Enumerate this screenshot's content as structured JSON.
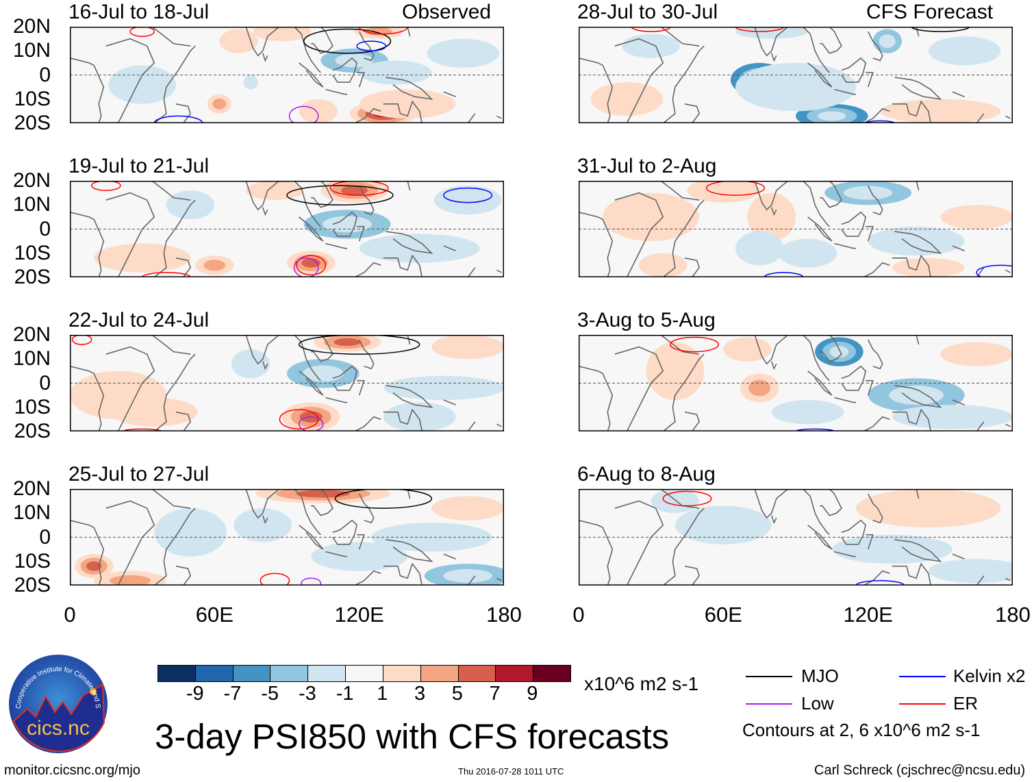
{
  "header": {
    "observed_label": "Observed",
    "forecast_label": "CFS Forecast"
  },
  "y_ticks": [
    "20N",
    "10N",
    "0",
    "10S",
    "20S"
  ],
  "x_ticks": [
    "0",
    "60E",
    "120E",
    "180"
  ],
  "panels": [
    {
      "title": "16-Jul to 18-Jul",
      "blobs": [
        [
          88,
          18,
          12,
          4,
          3
        ],
        [
          128,
          18,
          10,
          3,
          5
        ],
        [
          118,
          6,
          14,
          5,
          -4
        ],
        [
          135,
          1,
          15,
          5,
          -3
        ],
        [
          130,
          -16,
          14,
          5,
          8
        ],
        [
          62,
          -12,
          5,
          4,
          5
        ],
        [
          103,
          -15,
          8,
          5,
          3
        ],
        [
          163,
          9,
          15,
          6,
          -2
        ],
        [
          30,
          -4,
          14,
          8,
          -2
        ],
        [
          75,
          -3,
          3,
          3,
          -3
        ],
        [
          140,
          -12,
          20,
          6,
          2
        ],
        [
          70,
          14,
          8,
          5,
          2
        ]
      ],
      "contours": [
        [
          115,
          14,
          18,
          5,
          "mjo"
        ],
        [
          30,
          18,
          5,
          2,
          "er"
        ],
        [
          125,
          12,
          6,
          2,
          "kelvin"
        ],
        [
          45,
          -20,
          10,
          3,
          "kelvin"
        ],
        [
          97,
          -17,
          6,
          4,
          "low"
        ],
        [
          130,
          20,
          10,
          3,
          "er"
        ]
      ]
    },
    {
      "title": "28-Jul to 30-Jul",
      "blobs": [
        [
          75,
          -2,
          12,
          7,
          -6
        ],
        [
          105,
          -17,
          15,
          5,
          -6
        ],
        [
          90,
          -5,
          25,
          10,
          -3
        ],
        [
          128,
          14,
          6,
          5,
          -4
        ],
        [
          20,
          -10,
          15,
          7,
          2
        ],
        [
          150,
          -15,
          25,
          5,
          1.5
        ],
        [
          160,
          10,
          15,
          6,
          -2
        ],
        [
          80,
          18,
          15,
          3,
          -2
        ],
        [
          30,
          12,
          12,
          5,
          -2
        ]
      ],
      "contours": [
        [
          150,
          20,
          12,
          2,
          "mjo"
        ],
        [
          75,
          20,
          10,
          2,
          "er"
        ],
        [
          30,
          20,
          8,
          2,
          "er"
        ],
        [
          125,
          -20,
          6,
          1,
          "kelvin"
        ]
      ]
    },
    {
      "title": "19-Jul to 21-Jul",
      "blobs": [
        [
          118,
          16,
          14,
          5,
          7
        ],
        [
          85,
          16,
          12,
          4,
          3
        ],
        [
          115,
          2,
          18,
          6,
          -4
        ],
        [
          100,
          -14,
          10,
          5,
          7
        ],
        [
          60,
          -15,
          8,
          4,
          4
        ],
        [
          145,
          -8,
          25,
          6,
          -2
        ],
        [
          30,
          -12,
          20,
          6,
          2
        ],
        [
          165,
          12,
          14,
          6,
          -2
        ],
        [
          50,
          10,
          10,
          6,
          -1.5
        ]
      ],
      "contours": [
        [
          112,
          14,
          22,
          4,
          "mjo"
        ],
        [
          15,
          18,
          6,
          2,
          "er"
        ],
        [
          120,
          17,
          12,
          3,
          "er"
        ],
        [
          165,
          14,
          10,
          3,
          "kelvin"
        ],
        [
          100,
          -15,
          6,
          4,
          "er"
        ],
        [
          98,
          -16,
          5,
          4,
          "low"
        ],
        [
          40,
          -20,
          10,
          2,
          "er"
        ]
      ]
    },
    {
      "title": "31-Jul to 2-Aug",
      "blobs": [
        [
          60,
          16,
          15,
          5,
          3
        ],
        [
          80,
          5,
          10,
          10,
          2
        ],
        [
          120,
          15,
          18,
          5,
          -4
        ],
        [
          75,
          -8,
          10,
          7,
          -3
        ],
        [
          95,
          -10,
          12,
          6,
          -2
        ],
        [
          140,
          -5,
          20,
          6,
          -2
        ],
        [
          30,
          5,
          20,
          10,
          1.5
        ],
        [
          145,
          -16,
          15,
          4,
          2
        ],
        [
          35,
          -15,
          10,
          5,
          2
        ],
        [
          165,
          5,
          15,
          5,
          1.5
        ]
      ],
      "contours": [
        [
          65,
          17,
          12,
          3,
          "er"
        ],
        [
          85,
          -20,
          8,
          2,
          "kelvin"
        ],
        [
          175,
          -18,
          10,
          3,
          "kelvin"
        ]
      ]
    },
    {
      "title": "22-Jul to 24-Jul",
      "blobs": [
        [
          115,
          17,
          14,
          4,
          7
        ],
        [
          105,
          4,
          15,
          6,
          -5
        ],
        [
          100,
          -14,
          12,
          6,
          6
        ],
        [
          35,
          -12,
          18,
          6,
          2
        ],
        [
          145,
          -14,
          15,
          6,
          -2
        ],
        [
          165,
          15,
          15,
          5,
          2
        ],
        [
          75,
          8,
          8,
          6,
          -1.5
        ],
        [
          20,
          -5,
          20,
          10,
          1.5
        ],
        [
          155,
          -2,
          25,
          5,
          -1.5
        ]
      ],
      "contours": [
        [
          120,
          16,
          25,
          4,
          "mjo"
        ],
        [
          5,
          18,
          4,
          2,
          "er"
        ],
        [
          95,
          -15,
          8,
          4,
          "er"
        ],
        [
          100,
          -17,
          5,
          3,
          "low"
        ],
        [
          30,
          -20,
          8,
          1,
          "er"
        ]
      ]
    },
    {
      "title": "3-Aug to 5-Aug",
      "blobs": [
        [
          108,
          13,
          10,
          6,
          -7
        ],
        [
          75,
          -2,
          8,
          6,
          4
        ],
        [
          40,
          5,
          12,
          12,
          2
        ],
        [
          140,
          -5,
          20,
          7,
          -4
        ],
        [
          165,
          12,
          15,
          5,
          2
        ],
        [
          70,
          14,
          10,
          5,
          1.5
        ],
        [
          95,
          -12,
          15,
          5,
          -1.5
        ],
        [
          155,
          -14,
          25,
          5,
          -1.5
        ]
      ],
      "contours": [
        [
          48,
          16,
          10,
          3,
          "er"
        ],
        [
          98,
          -20,
          8,
          1,
          "kelvin"
        ]
      ]
    },
    {
      "title": "25-Jul to 27-Jul",
      "blobs": [
        [
          105,
          18,
          28,
          4,
          7
        ],
        [
          80,
          5,
          12,
          7,
          -3
        ],
        [
          120,
          -8,
          20,
          6,
          -2
        ],
        [
          10,
          -12,
          8,
          5,
          6
        ],
        [
          25,
          -18,
          15,
          4,
          4
        ],
        [
          165,
          -16,
          18,
          5,
          -5
        ],
        [
          150,
          0,
          25,
          6,
          -2
        ],
        [
          50,
          2,
          15,
          10,
          -1.5
        ],
        [
          165,
          12,
          15,
          5,
          2
        ]
      ],
      "contours": [
        [
          130,
          16,
          20,
          4,
          "mjo"
        ],
        [
          85,
          -18,
          6,
          3,
          "er"
        ],
        [
          100,
          -19,
          4,
          2,
          "low"
        ]
      ]
    },
    {
      "title": "6-Aug to 8-Aug",
      "blobs": [
        [
          145,
          12,
          30,
          8,
          2
        ],
        [
          135,
          15,
          15,
          4,
          3
        ],
        [
          60,
          5,
          20,
          8,
          -2
        ],
        [
          130,
          -5,
          25,
          6,
          -1.5
        ],
        [
          40,
          15,
          10,
          5,
          -1.5
        ],
        [
          165,
          -14,
          20,
          5,
          -1.5
        ]
      ],
      "contours": [
        [
          45,
          16,
          10,
          3,
          "er"
        ],
        [
          125,
          -20,
          10,
          2,
          "kelvin"
        ]
      ]
    }
  ],
  "colorbar": {
    "colors": [
      "#0a2f60",
      "#2166ac",
      "#4393c3",
      "#92c5de",
      "#d1e5f0",
      "#f7f7f7",
      "#fddbc7",
      "#f4a582",
      "#d6604d",
      "#b2182b",
      "#67001f"
    ],
    "labels": [
      "-9",
      "-7",
      "-5",
      "-3",
      "-1",
      "1",
      "3",
      "5",
      "7",
      "9"
    ],
    "units": "x10^6 m2 s-1"
  },
  "legend": {
    "items": [
      {
        "label": "MJO",
        "color": "#000000"
      },
      {
        "label": "Kelvin x2",
        "color": "#0000ff"
      },
      {
        "label": "Low",
        "color": "#a020f0"
      },
      {
        "label": "ER",
        "color": "#ff0000"
      }
    ],
    "note": "Contours at 2, 6 x10^6 m2 s-1"
  },
  "title": "3-day PSI850 with CFS forecasts",
  "footer": {
    "url": "monitor.cicsnc.org/mjo",
    "timestamp": "Thu 2016-07-28 1011 UTC",
    "author": "Carl Schreck (cjschrec@ncsu.edu)"
  },
  "logo": {
    "name": "cics.nc",
    "arc_text": "Cooperative Institute for Climate and Satellites"
  }
}
